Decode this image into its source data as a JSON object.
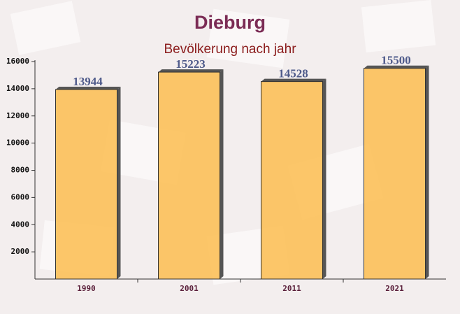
{
  "chart_data": {
    "type": "bar",
    "title": "Dieburg",
    "subtitle": "Bevölkerung nach jahr",
    "categories": [
      "1990",
      "2001",
      "2011",
      "2021"
    ],
    "values": [
      13944,
      15223,
      14528,
      15500
    ],
    "color": "#fcbf55",
    "ylim": [
      0,
      16000
    ],
    "yticks": [
      2000,
      4000,
      6000,
      8000,
      10000,
      12000,
      14000,
      16000
    ]
  }
}
